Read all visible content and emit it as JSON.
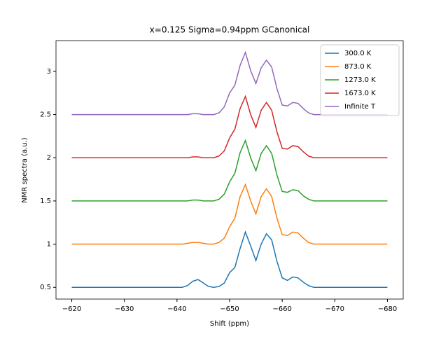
{
  "chart_data": {
    "type": "line",
    "title": "x=0.125  Sigma=0.94ppm  GCanonical",
    "x_label": "Shift (ppm)",
    "y_label": "NMR spectra (a.u.)",
    "x": [
      -620,
      -630,
      -640,
      -641,
      -642,
      -643,
      -644,
      -645,
      -646,
      -647,
      -648,
      -649,
      -650,
      -651,
      -652,
      -653,
      -654,
      -655,
      -656,
      -657,
      -658,
      -659,
      -660,
      -661,
      -662,
      -663,
      -664,
      -665,
      -666,
      -667,
      -668,
      -670,
      -680
    ],
    "series": [
      {
        "name": "300.0 K",
        "color": "#1f77b4",
        "values": [
          0.5,
          0.5,
          0.5,
          0.5,
          0.52,
          0.57,
          0.59,
          0.55,
          0.51,
          0.5,
          0.51,
          0.55,
          0.67,
          0.73,
          0.95,
          1.14,
          0.98,
          0.81,
          1.0,
          1.12,
          1.05,
          0.8,
          0.61,
          0.58,
          0.62,
          0.61,
          0.56,
          0.52,
          0.5,
          0.5,
          0.5,
          0.5,
          0.5
        ]
      },
      {
        "name": "873.0 K",
        "color": "#ff7f0e",
        "values": [
          1.0,
          1.0,
          1.0,
          1.0,
          1.01,
          1.02,
          1.02,
          1.01,
          1.0,
          1.0,
          1.02,
          1.07,
          1.2,
          1.3,
          1.55,
          1.69,
          1.5,
          1.35,
          1.55,
          1.64,
          1.55,
          1.3,
          1.11,
          1.1,
          1.14,
          1.13,
          1.07,
          1.02,
          1.0,
          1.0,
          1.0,
          1.0,
          1.0
        ]
      },
      {
        "name": "1273.0 K",
        "color": "#2ca02c",
        "values": [
          1.5,
          1.5,
          1.5,
          1.5,
          1.5,
          1.51,
          1.51,
          1.5,
          1.5,
          1.5,
          1.52,
          1.58,
          1.72,
          1.82,
          2.06,
          2.2,
          2.0,
          1.85,
          2.05,
          2.14,
          2.05,
          1.8,
          1.61,
          1.6,
          1.63,
          1.62,
          1.56,
          1.52,
          1.5,
          1.5,
          1.5,
          1.5,
          1.5
        ]
      },
      {
        "name": "1673.0 K",
        "color": "#d62728",
        "values": [
          2.0,
          2.0,
          2.0,
          2.0,
          2.0,
          2.01,
          2.01,
          2.0,
          2.0,
          2.0,
          2.02,
          2.08,
          2.23,
          2.33,
          2.57,
          2.71,
          2.5,
          2.35,
          2.55,
          2.64,
          2.55,
          2.3,
          2.11,
          2.1,
          2.14,
          2.13,
          2.07,
          2.02,
          2.0,
          2.0,
          2.0,
          2.0,
          2.0
        ]
      },
      {
        "name": "Infinite T",
        "color": "#9467bd",
        "values": [
          2.5,
          2.5,
          2.5,
          2.5,
          2.5,
          2.51,
          2.51,
          2.5,
          2.5,
          2.5,
          2.52,
          2.59,
          2.75,
          2.84,
          3.07,
          3.22,
          3.01,
          2.86,
          3.04,
          3.13,
          3.05,
          2.8,
          2.61,
          2.6,
          2.64,
          2.63,
          2.57,
          2.52,
          2.5,
          2.5,
          2.5,
          2.5,
          2.5
        ]
      }
    ],
    "xlim": [
      -617,
      -683
    ],
    "ylim": [
      0.364,
      3.356
    ],
    "xticks": [
      {
        "value": -620,
        "label": "−620"
      },
      {
        "value": -630,
        "label": "−630"
      },
      {
        "value": -640,
        "label": "−640"
      },
      {
        "value": -650,
        "label": "−650"
      },
      {
        "value": -660,
        "label": "−660"
      },
      {
        "value": -670,
        "label": "−670"
      },
      {
        "value": -680,
        "label": "−680"
      }
    ],
    "yticks": [
      0.5,
      1.0,
      1.5,
      2.0,
      2.5,
      3.0
    ],
    "legend": "upper right"
  }
}
